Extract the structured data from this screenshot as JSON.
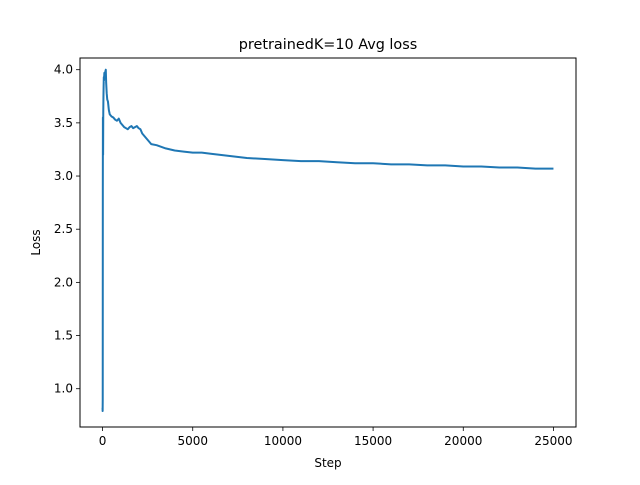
{
  "chart_data": {
    "type": "line",
    "title": "pretrainedK=10 Avg loss",
    "xlabel": "Step",
    "ylabel": "Loss",
    "xlim": [
      -1250,
      26250
    ],
    "ylim": [
      0.64,
      4.11
    ],
    "xticks": [
      0,
      5000,
      10000,
      15000,
      20000,
      25000
    ],
    "xtick_labels": [
      "0",
      "5000",
      "10000",
      "15000",
      "20000",
      "25000"
    ],
    "yticks": [
      1.0,
      1.5,
      2.0,
      2.5,
      3.0,
      3.5,
      4.0
    ],
    "ytick_labels": [
      "1.0",
      "1.5",
      "2.0",
      "2.5",
      "3.0",
      "3.5",
      "4.0"
    ],
    "grid": false,
    "legend": "none",
    "series": [
      {
        "color": "#1f77b4",
        "x": [
          0,
          5,
          10,
          15,
          20,
          30,
          40,
          50,
          60,
          70,
          80,
          100,
          120,
          150,
          180,
          200,
          230,
          260,
          300,
          350,
          400,
          500,
          600,
          700,
          800,
          900,
          1000,
          1100,
          1200,
          1300,
          1400,
          1500,
          1600,
          1700,
          1800,
          1900,
          2000,
          2100,
          2200,
          2300,
          2400,
          2500,
          2700,
          3000,
          3500,
          4000,
          4500,
          5000,
          5500,
          6000,
          7000,
          8000,
          9000,
          10000,
          11000,
          12000,
          13000,
          14000,
          15000,
          16000,
          17000,
          18000,
          19000,
          20000,
          21000,
          22000,
          23000,
          24000,
          25000
        ],
        "y": [
          0.82,
          0.79,
          0.9,
          2.9,
          3.55,
          3.2,
          3.6,
          3.75,
          3.85,
          3.93,
          3.9,
          3.97,
          3.92,
          3.98,
          4.0,
          3.88,
          3.78,
          3.72,
          3.7,
          3.62,
          3.58,
          3.56,
          3.55,
          3.53,
          3.52,
          3.54,
          3.5,
          3.48,
          3.46,
          3.45,
          3.44,
          3.46,
          3.47,
          3.45,
          3.46,
          3.47,
          3.45,
          3.44,
          3.4,
          3.38,
          3.36,
          3.34,
          3.3,
          3.29,
          3.26,
          3.24,
          3.23,
          3.22,
          3.22,
          3.21,
          3.19,
          3.17,
          3.16,
          3.15,
          3.14,
          3.14,
          3.13,
          3.12,
          3.12,
          3.11,
          3.11,
          3.1,
          3.1,
          3.09,
          3.09,
          3.08,
          3.08,
          3.07,
          3.07
        ]
      }
    ]
  }
}
